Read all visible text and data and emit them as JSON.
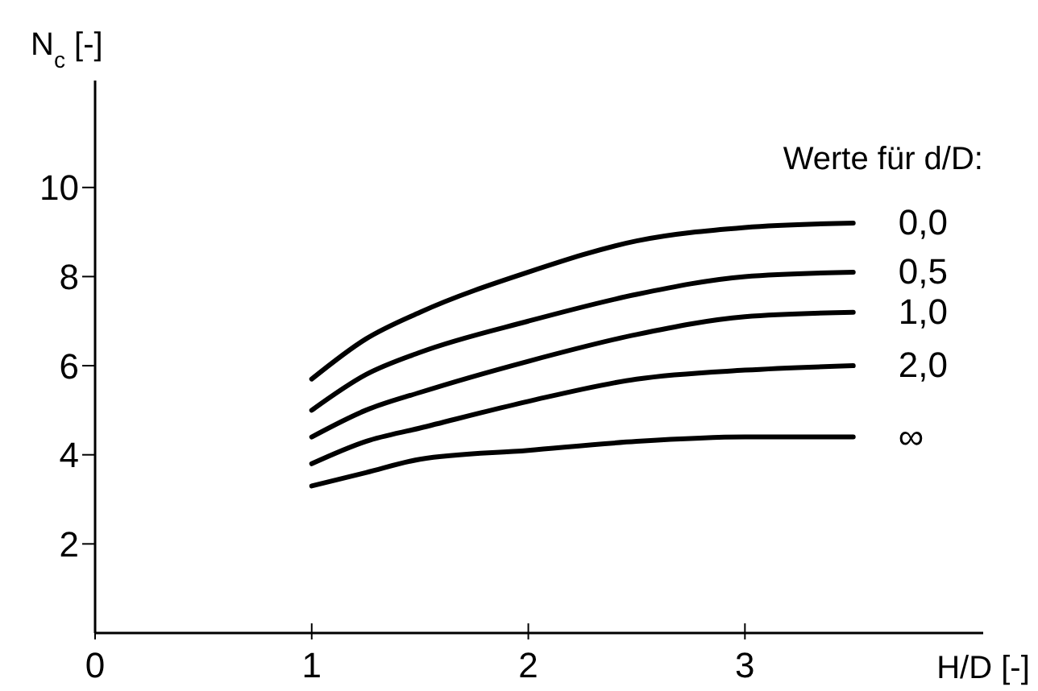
{
  "chart_data": {
    "type": "line",
    "xlabel": "H/D [-]",
    "ylabel": "N$_{c}$ [-]",
    "legend_title": "Werte für d/D:",
    "x": [
      1,
      1.25,
      1.5,
      2,
      2.5,
      3,
      3.5
    ],
    "xlim": [
      0,
      4.1
    ],
    "xticks": [
      0,
      1,
      2,
      3
    ],
    "ylim": [
      0,
      12.4
    ],
    "yticks": [
      2,
      4,
      6,
      8,
      10
    ],
    "grid": false,
    "marker": "none",
    "line_style": "solid",
    "series": [
      {
        "name": "0,0",
        "color": "#000000",
        "values": [
          5.7,
          6.6,
          7.2,
          8.1,
          8.8,
          9.1,
          9.2
        ]
      },
      {
        "name": "0,5",
        "color": "#000000",
        "values": [
          5.0,
          5.8,
          6.3,
          7.0,
          7.6,
          8.0,
          8.1
        ]
      },
      {
        "name": "1,0",
        "color": "#000000",
        "values": [
          4.4,
          5.0,
          5.4,
          6.1,
          6.7,
          7.1,
          7.2
        ]
      },
      {
        "name": "2,0",
        "color": "#000000",
        "values": [
          3.8,
          4.3,
          4.6,
          5.2,
          5.7,
          5.9,
          6.0
        ]
      },
      {
        "name": "∞",
        "color": "#000000",
        "values": [
          3.3,
          3.6,
          3.9,
          4.1,
          4.3,
          4.4,
          4.4
        ]
      }
    ]
  }
}
